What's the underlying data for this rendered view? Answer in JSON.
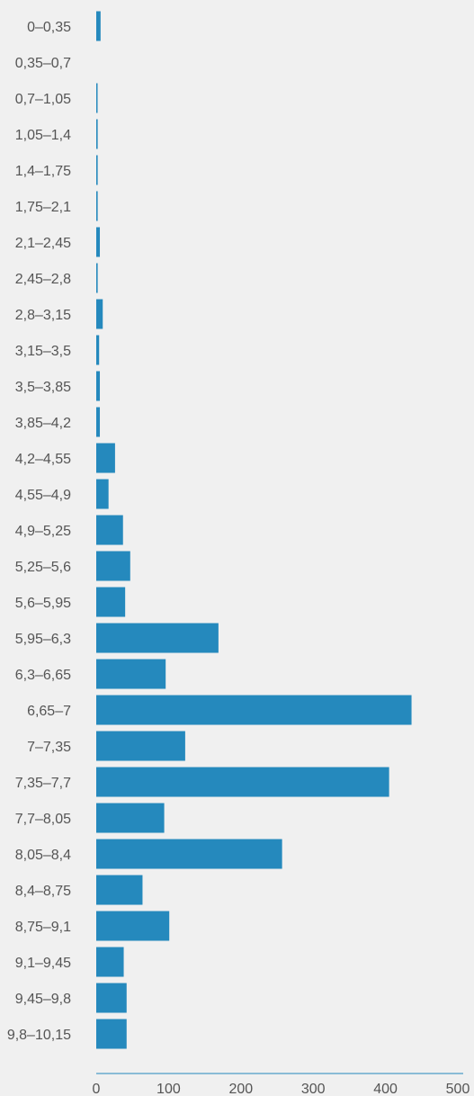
{
  "chart_data": {
    "type": "bar",
    "orientation": "horizontal",
    "categories": [
      "0–0,35",
      "0,35–0,7",
      "0,7–1,05",
      "1,05–1,4",
      "1,4–1,75",
      "1,75–2,1",
      "2,1–2,45",
      "2,45–2,8",
      "2,8–3,15",
      "3,15–3,5",
      "3,5–3,85",
      "3,85–4,2",
      "4,2–4,55",
      "4,55–4,9",
      "4,9–5,25",
      "5,25–5,6",
      "5,6–5,95",
      "5,95–6,3",
      "6,3–6,65",
      "6,65–7",
      "7–7,35",
      "7,35–7,7",
      "7,7–8,05",
      "8,05–8,4",
      "8,4–8,75",
      "8,75–9,1",
      "9,1–9,45",
      "9,45–9,8",
      "9,8–10,15"
    ],
    "values": [
      6,
      0,
      1,
      2,
      2,
      2,
      5,
      2,
      9,
      4,
      5,
      5,
      26,
      17,
      37,
      47,
      40,
      169,
      96,
      436,
      123,
      405,
      94,
      257,
      64,
      101,
      38,
      42,
      42
    ],
    "xlim": [
      0,
      500
    ],
    "xticks": [
      0,
      100,
      200,
      300,
      400,
      500
    ],
    "title": "",
    "xlabel": "",
    "ylabel": "",
    "grid": false,
    "colors": {
      "bar": "#2589bd",
      "axis": "#2589bd",
      "text": "#555555",
      "background": "#f0f0f0"
    }
  }
}
